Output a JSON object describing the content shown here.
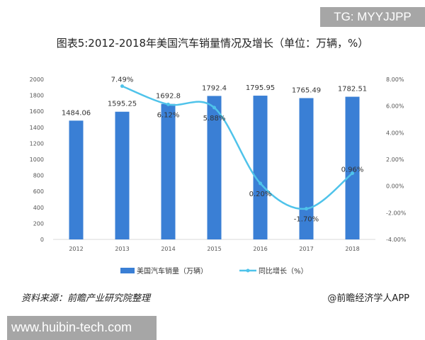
{
  "tag": "TG: MYYJJPP",
  "footer": {
    "source": "资料来源：前瞻产业研究院整理",
    "app": "@前瞻经济学人APP"
  },
  "watermark": "www.huibin-tech.com",
  "colors": {
    "bar": "#3a7fd5",
    "line": "#4fc3ea"
  },
  "chart_data": {
    "type": "bar+line",
    "title": "图表5:2012-2018年美国汽车销量情况及增长（单位：万辆，%）",
    "categories": [
      "2012",
      "2013",
      "2014",
      "2015",
      "2016",
      "2017",
      "2018"
    ],
    "series": [
      {
        "name": "美国汽车销量（万辆）",
        "type": "bar",
        "axis": "left",
        "values": [
          1484.06,
          1595.25,
          1692.8,
          1792.4,
          1795.95,
          1765.49,
          1782.51
        ],
        "labels": [
          "1484.06",
          "1595.25",
          "1692.8",
          "1792.4",
          "1795.95",
          "1765.49",
          "1782.51"
        ]
      },
      {
        "name": "同比增长（%）",
        "type": "line",
        "axis": "right",
        "values": [
          null,
          7.49,
          6.12,
          5.88,
          0.2,
          -1.7,
          0.96
        ],
        "labels": [
          "",
          "7.49%",
          "6.12%",
          "5.88%",
          "0.20%",
          "-1.70%",
          "0.96%"
        ]
      }
    ],
    "left_axis": {
      "range": [
        0,
        2000
      ],
      "ticks": [
        "0",
        "200",
        "400",
        "600",
        "800",
        "1000",
        "1200",
        "1400",
        "1600",
        "1800",
        "2000"
      ]
    },
    "right_axis": {
      "range": [
        -4,
        8
      ],
      "ticks": [
        "-4.00%",
        "-2.00%",
        "0.00%",
        "2.00%",
        "4.00%",
        "6.00%",
        "8.00%"
      ]
    },
    "grid": false,
    "legend_position": "bottom"
  }
}
